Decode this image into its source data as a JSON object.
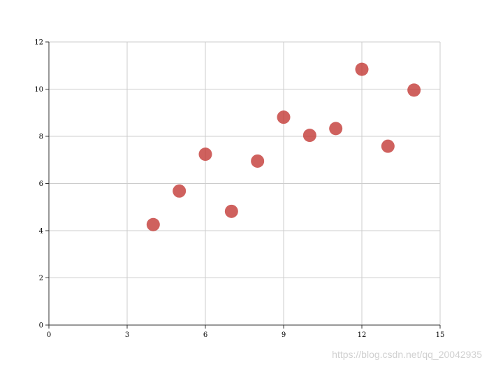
{
  "chart_data": {
    "type": "scatter",
    "title": "",
    "xlabel": "",
    "ylabel": "",
    "xlim": [
      0,
      15
    ],
    "ylim": [
      0,
      12
    ],
    "xticks": [
      "0",
      "3",
      "6",
      "9",
      "12",
      "15"
    ],
    "yticks": [
      "0",
      "2",
      "4",
      "6",
      "8",
      "10",
      "12"
    ],
    "grid": true,
    "series": [
      {
        "x": [
          4,
          5,
          6,
          7,
          8,
          9,
          10,
          11,
          12,
          13,
          14
        ],
        "y": [
          4.26,
          5.68,
          7.24,
          4.82,
          6.95,
          8.81,
          8.04,
          8.33,
          10.84,
          7.58,
          9.96
        ],
        "color": "#c23531"
      }
    ]
  },
  "watermark": {
    "text": "https://blog.csdn.net/qq_20042935"
  }
}
